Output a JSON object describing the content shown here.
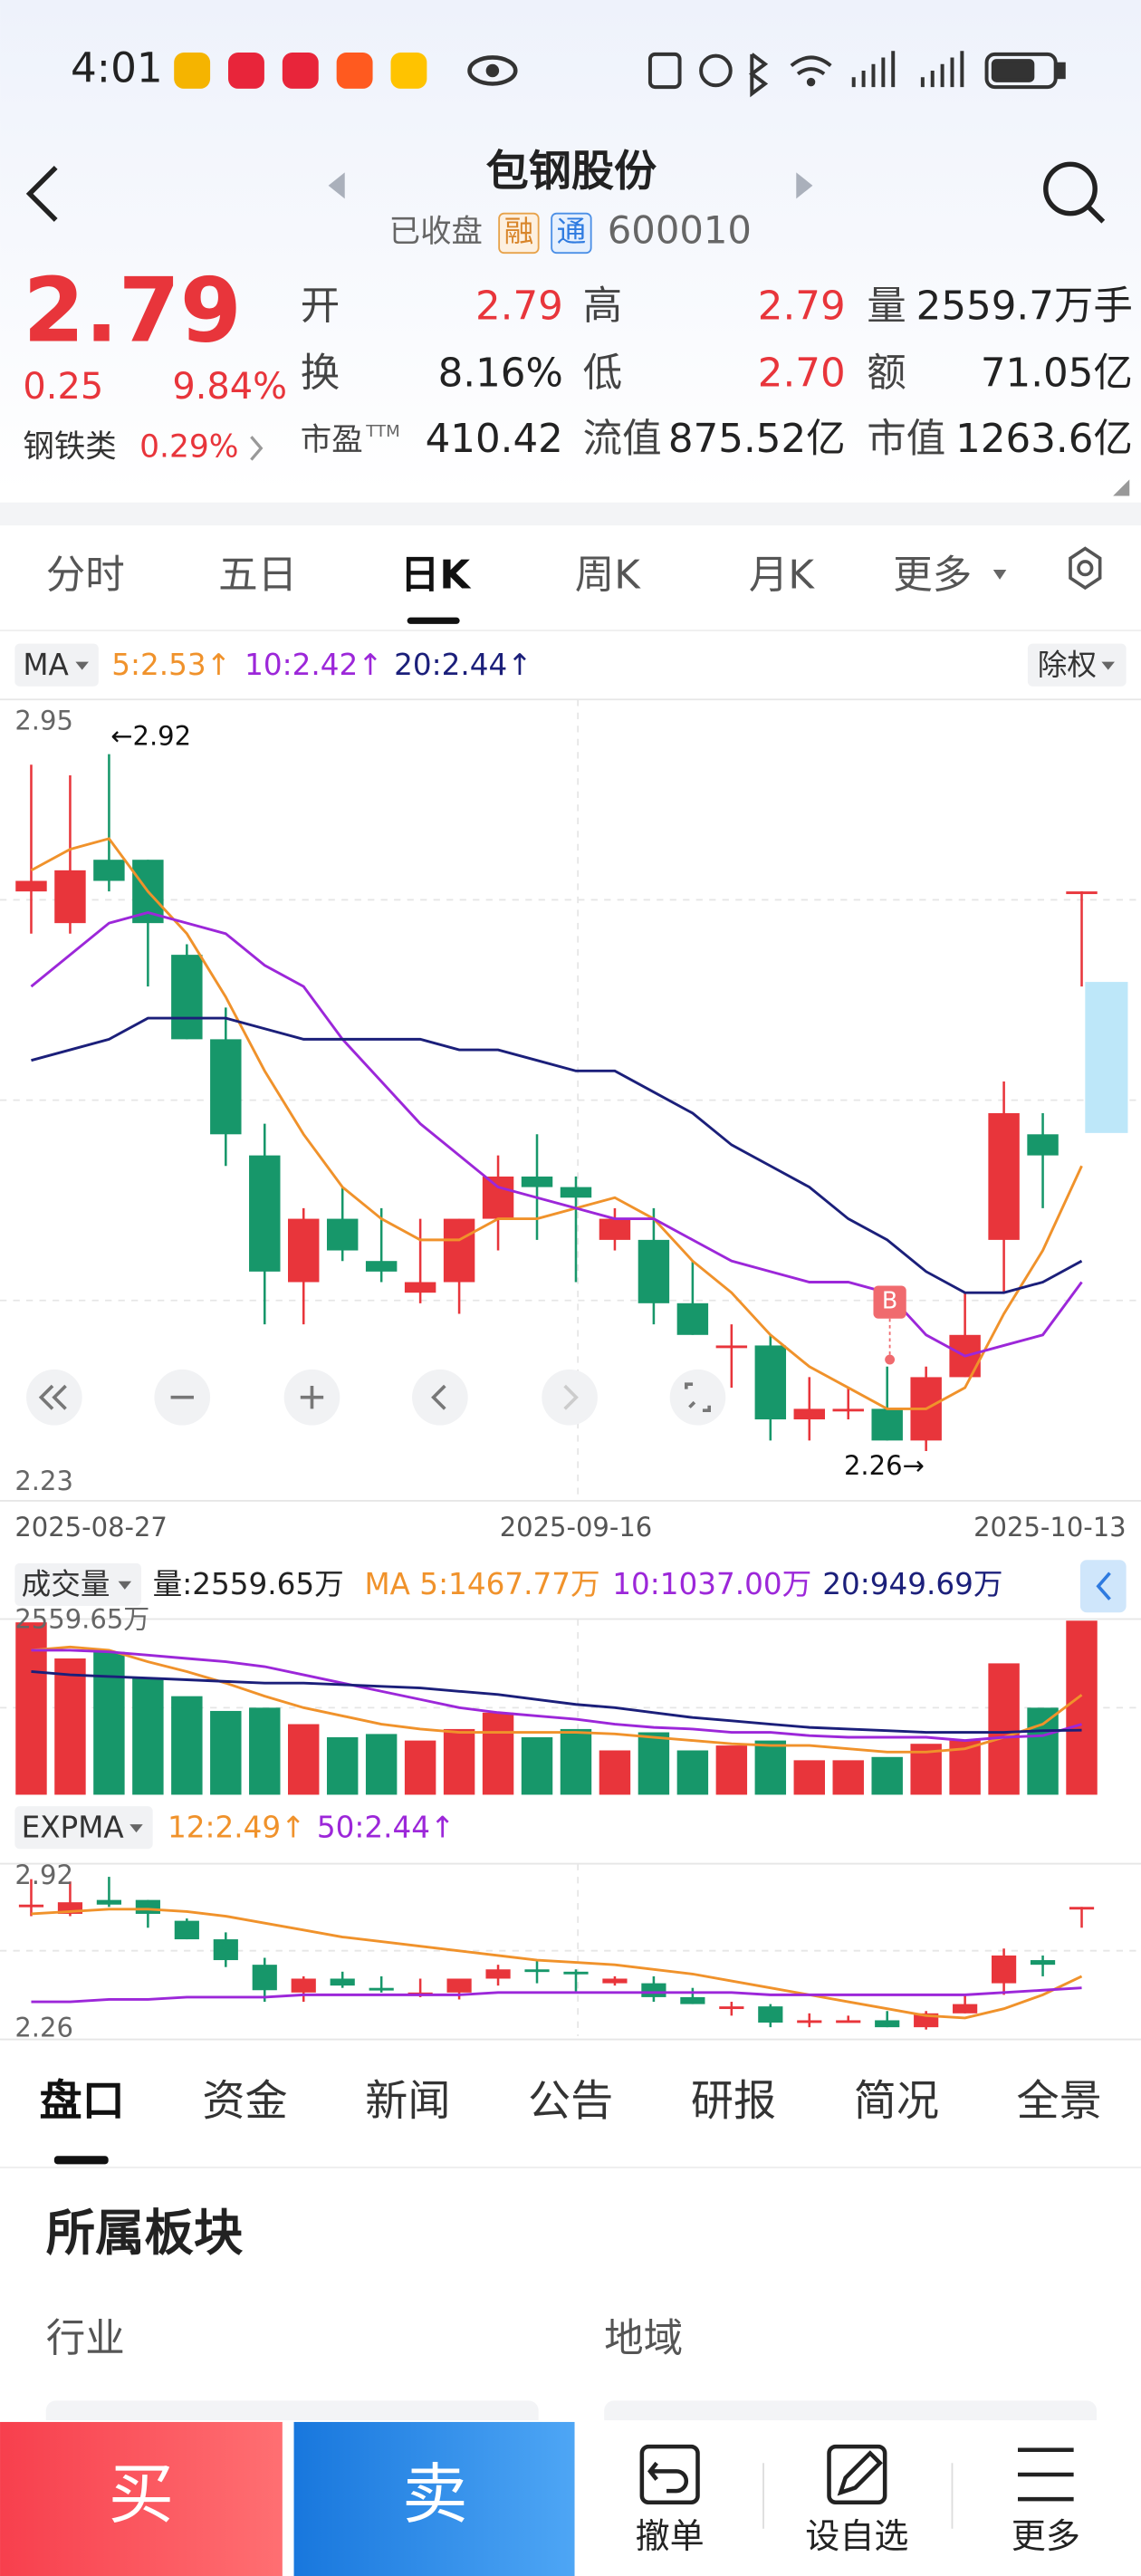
{
  "status_bar": {
    "time": "4:01"
  },
  "header": {
    "title": "包钢股份",
    "status": "已收盘",
    "tags": [
      "融",
      "通"
    ],
    "code": "600010"
  },
  "quote": {
    "price": "2.79",
    "change": "0.25",
    "change_pct": "9.84%",
    "sector": "钢铁类",
    "sector_pct": "0.29%",
    "stats": [
      {
        "label": "开",
        "value": "2.79"
      },
      {
        "label": "高",
        "value": "2.79"
      },
      {
        "label": "量",
        "value": "2559.7万手"
      },
      {
        "label": "换",
        "value": "8.16%"
      },
      {
        "label": "低",
        "value": "2.70"
      },
      {
        "label": "额",
        "value": "71.05亿"
      },
      {
        "label": "市盈",
        "sup": "TTM",
        "value": "410.42"
      },
      {
        "label": "流值",
        "value": "875.52亿"
      },
      {
        "label": "市值",
        "value": "1263.6亿"
      }
    ]
  },
  "period_tabs": [
    "分时",
    "五日",
    "日K",
    "周K",
    "月K",
    "更多"
  ],
  "chart_data": [
    {
      "type": "candlestick",
      "indicator": "MA",
      "adjust": "除权",
      "categories": [
        "2025-08-27",
        null,
        null,
        null,
        null,
        null,
        null,
        null,
        null,
        null,
        null,
        null,
        null,
        null,
        "2025-09-16",
        null,
        null,
        null,
        null,
        null,
        null,
        null,
        null,
        null,
        null,
        null,
        null,
        "2025-10-13"
      ],
      "open": [
        2.79,
        2.76,
        2.82,
        2.82,
        2.73,
        2.65,
        2.54,
        2.42,
        2.48,
        2.44,
        2.41,
        2.42,
        2.48,
        2.52,
        2.51,
        2.46,
        2.46,
        2.4,
        2.36,
        2.36,
        2.29,
        2.3,
        2.3,
        2.27,
        2.33,
        2.46,
        2.56,
        2.79
      ],
      "close": [
        2.8,
        2.81,
        2.8,
        2.76,
        2.65,
        2.56,
        2.43,
        2.48,
        2.45,
        2.43,
        2.42,
        2.48,
        2.52,
        2.51,
        2.5,
        2.48,
        2.4,
        2.37,
        2.36,
        2.29,
        2.3,
        2.3,
        2.27,
        2.33,
        2.37,
        2.58,
        2.54,
        2.79
      ],
      "high": [
        2.91,
        2.9,
        2.92,
        2.82,
        2.74,
        2.68,
        2.57,
        2.49,
        2.51,
        2.49,
        2.48,
        2.48,
        2.54,
        2.56,
        2.52,
        2.49,
        2.49,
        2.44,
        2.38,
        2.37,
        2.33,
        2.32,
        2.34,
        2.34,
        2.41,
        2.61,
        2.58,
        2.79
      ],
      "low": [
        2.75,
        2.75,
        2.79,
        2.7,
        2.65,
        2.53,
        2.38,
        2.38,
        2.44,
        2.42,
        2.4,
        2.39,
        2.45,
        2.46,
        2.42,
        2.45,
        2.38,
        2.37,
        2.32,
        2.27,
        2.27,
        2.29,
        2.27,
        2.26,
        2.33,
        2.41,
        2.49,
        2.7
      ],
      "up_color": "#e8353b",
      "down_color": "#17976a",
      "series": [
        {
          "name": "5:2.53↑",
          "color": "#f0922b",
          "values": [
            2.81,
            2.83,
            2.84,
            2.79,
            2.75,
            2.69,
            2.62,
            2.56,
            2.51,
            2.48,
            2.46,
            2.46,
            2.48,
            2.48,
            2.49,
            2.5,
            2.48,
            2.44,
            2.41,
            2.37,
            2.34,
            2.32,
            2.3,
            2.3,
            2.32,
            2.39,
            2.45,
            2.53
          ]
        },
        {
          "name": "10:2.42↑",
          "color": "#9c27d9",
          "values": [
            2.7,
            2.73,
            2.76,
            2.77,
            2.76,
            2.75,
            2.72,
            2.7,
            2.65,
            2.61,
            2.57,
            2.54,
            2.51,
            2.5,
            2.49,
            2.48,
            2.48,
            2.46,
            2.44,
            2.43,
            2.42,
            2.42,
            2.41,
            2.37,
            2.35,
            2.36,
            2.37,
            2.42
          ]
        },
        {
          "name": "20:2.44↑",
          "color": "#1b1f7a",
          "values": [
            2.63,
            2.64,
            2.65,
            2.67,
            2.67,
            2.67,
            2.66,
            2.65,
            2.65,
            2.65,
            2.65,
            2.64,
            2.64,
            2.63,
            2.62,
            2.62,
            2.6,
            2.58,
            2.55,
            2.53,
            2.51,
            2.48,
            2.46,
            2.43,
            2.41,
            2.41,
            2.42,
            2.44
          ]
        }
      ],
      "ylim": [
        2.23,
        2.95
      ],
      "yticks": [
        2.95,
        2.23
      ],
      "max_label": "←2.92",
      "min_label": "2.26→",
      "signal": "B"
    },
    {
      "type": "bar",
      "title": "成交量",
      "summary": "量:2559.65万",
      "values": [
        2535,
        2004,
        2101,
        1714,
        1449,
        1232,
        1280,
        1038,
        845,
        893,
        797,
        966,
        1207,
        845,
        966,
        652,
        918,
        652,
        724,
        797,
        507,
        507,
        555,
        749,
        797,
        1932,
        1280,
        2559.65
      ],
      "series": [
        {
          "name": "MA 5:1467.77万",
          "color": "#f0922b",
          "values": [
            2125,
            2173,
            2125,
            1956,
            1811,
            1642,
            1449,
            1280,
            1159,
            1038,
            966,
            918,
            918,
            918,
            918,
            894,
            845,
            797,
            749,
            724,
            724,
            676,
            628,
            628,
            676,
            845,
            1038,
            1467.77
          ]
        },
        {
          "name": "10:1037.00万",
          "color": "#9c27d9",
          "values": [
            2125,
            2125,
            2101,
            2053,
            2004,
            1956,
            1884,
            1763,
            1642,
            1521,
            1401,
            1280,
            1208,
            1159,
            1111,
            1038,
            990,
            966,
            918,
            918,
            869,
            845,
            845,
            845,
            797,
            845,
            869,
            1037.0
          ]
        },
        {
          "name": "20:949.69万",
          "color": "#1b1f7a",
          "values": [
            1811,
            1763,
            1739,
            1715,
            1691,
            1666,
            1642,
            1642,
            1618,
            1594,
            1570,
            1521,
            1473,
            1401,
            1328,
            1280,
            1208,
            1135,
            1087,
            1038,
            990,
            966,
            942,
            918,
            918,
            918,
            942,
            949.69
          ]
        }
      ],
      "ylim": [
        0,
        2559.65
      ],
      "yticks": [
        {
          "value": 2559.65,
          "label": "2559.65万"
        }
      ]
    },
    {
      "type": "line",
      "title": "EXPMA",
      "series": [
        {
          "name": "12:2.49↑",
          "color": "#f0922b",
          "values": [
            2.76,
            2.77,
            2.78,
            2.78,
            2.77,
            2.75,
            2.72,
            2.69,
            2.66,
            2.64,
            2.62,
            2.6,
            2.58,
            2.56,
            2.55,
            2.54,
            2.52,
            2.5,
            2.47,
            2.44,
            2.41,
            2.38,
            2.35,
            2.32,
            2.31,
            2.35,
            2.41,
            2.49
          ]
        },
        {
          "name": "50:2.44↑",
          "color": "#9c27d9",
          "values": [
            2.38,
            2.38,
            2.39,
            2.39,
            2.4,
            2.4,
            2.4,
            2.41,
            2.41,
            2.41,
            2.41,
            2.41,
            2.42,
            2.42,
            2.42,
            2.42,
            2.42,
            2.42,
            2.42,
            2.41,
            2.41,
            2.41,
            2.41,
            2.41,
            2.41,
            2.42,
            2.43,
            2.44
          ]
        }
      ],
      "ylim": [
        2.26,
        2.92
      ],
      "yticks": [
        2.92,
        2.26
      ]
    }
  ],
  "detail_tabs": [
    "盘口",
    "资金",
    "新闻",
    "公告",
    "研报",
    "简况",
    "全景"
  ],
  "section": {
    "title": "所属板块",
    "labels": [
      "行业",
      "地域"
    ]
  },
  "bottom_bar": {
    "buy": "买",
    "sell": "卖",
    "actions": [
      "撤单",
      "设自选",
      "更多"
    ]
  }
}
